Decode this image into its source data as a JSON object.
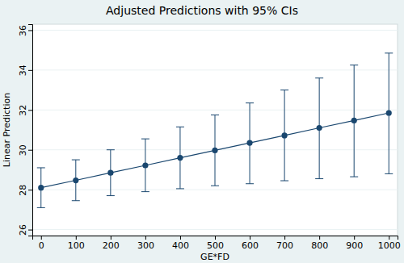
{
  "chart_data": {
    "type": "line",
    "title": "Adjusted Predictions with 95% CIs",
    "x_label": "GE*FD",
    "y_label": "Linear Prediction",
    "x": [
      0,
      100,
      200,
      300,
      400,
      500,
      600,
      700,
      800,
      900,
      1000
    ],
    "series": [
      {
        "name": "Linear Prediction",
        "color": "#1a476f",
        "marker": "circle",
        "line_style": "solid",
        "values": [
          28.1,
          28.47,
          28.85,
          29.22,
          29.6,
          29.97,
          30.35,
          30.72,
          31.1,
          31.47,
          31.85
        ],
        "lower": [
          27.1,
          27.45,
          27.7,
          27.9,
          28.05,
          28.2,
          28.3,
          28.45,
          28.55,
          28.65,
          28.8
        ],
        "upper": [
          29.1,
          29.5,
          30.0,
          30.55,
          31.15,
          31.75,
          32.35,
          33.0,
          33.6,
          34.25,
          34.85
        ]
      }
    ],
    "xlim": [
      -25,
      1025
    ],
    "xticks": [
      0,
      100,
      200,
      300,
      400,
      500,
      600,
      700,
      800,
      900,
      1000
    ],
    "ylim": [
      25.7,
      36.3
    ],
    "yticks": [
      26,
      28,
      30,
      32,
      34,
      36
    ],
    "grid": true
  }
}
